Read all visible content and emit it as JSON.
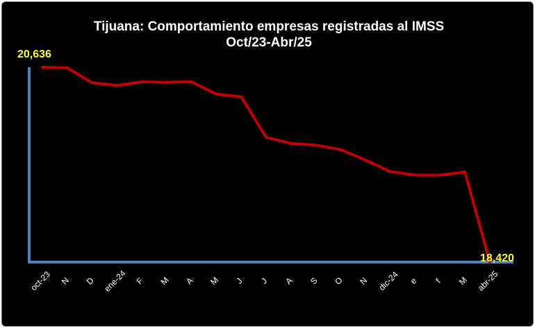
{
  "chart_data": {
    "type": "line",
    "title": "Tijuana: Comportamiento empresas registradas al IMSS",
    "subtitle": "Oct/23-Abr/25",
    "xlabel": "",
    "ylabel": "",
    "categories": [
      "oct-23",
      "N",
      "D",
      "ene-24",
      "F",
      "M",
      "A",
      "M",
      "J",
      "J",
      "A",
      "S",
      "O",
      "N",
      "dic-24",
      "e",
      "f",
      "M",
      "abr-25"
    ],
    "series": [
      {
        "values": [
          20636,
          20630,
          20460,
          20430,
          20470,
          20465,
          20470,
          20330,
          20300,
          19840,
          19770,
          19750,
          19700,
          19580,
          19450,
          19410,
          19410,
          19445,
          18420
        ]
      }
    ],
    "data_labels": {
      "first": "20,636",
      "last": "18,420"
    },
    "ylim": [
      18420,
      20636
    ],
    "grid": false,
    "legend": "none",
    "colors": {
      "background": "#000000",
      "line": "#c00000",
      "axis": "#4f81bd",
      "text": "#ffffff",
      "data_label": "#ffff33"
    }
  }
}
